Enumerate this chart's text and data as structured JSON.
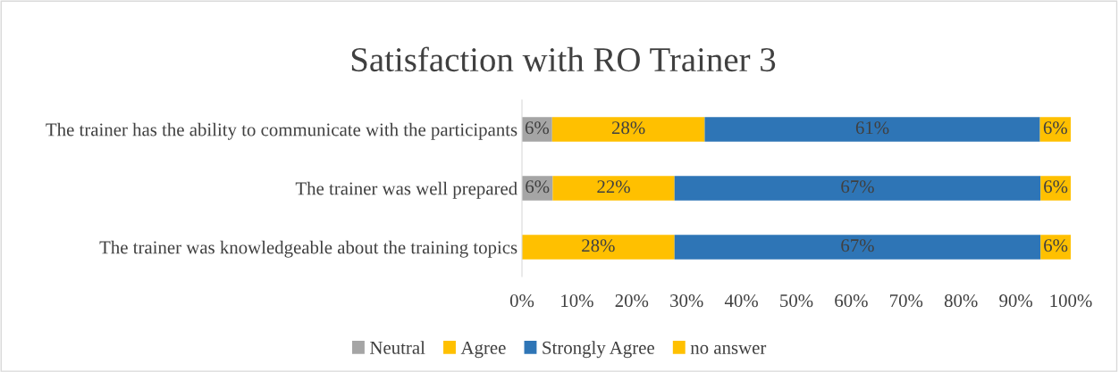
{
  "chart_data": {
    "type": "bar",
    "orientation": "horizontal",
    "stacked": true,
    "title": "Satisfaction with RO Trainer 3",
    "categories": [
      "The trainer has the ability to communicate with the participants",
      "The trainer was well prepared",
      "The trainer was knowledgeable about the training topics"
    ],
    "series": [
      {
        "name": "Neutral",
        "color": "#a5a5a5",
        "values": [
          5.5,
          5.6,
          null
        ],
        "value_labels": [
          "6%",
          "6%",
          null
        ]
      },
      {
        "name": "Agree",
        "color": "#ffc000",
        "values": [
          27.8,
          22.2,
          27.8
        ],
        "value_labels": [
          "28%",
          "22%",
          "28%"
        ]
      },
      {
        "name": "Strongly Agree",
        "color": "#2e75b6",
        "values": [
          61.1,
          66.7,
          66.7
        ],
        "value_labels": [
          "61%",
          "67%",
          "67%"
        ]
      },
      {
        "name": "no answer",
        "color": "#ffc000",
        "values": [
          5.6,
          5.5,
          5.5
        ],
        "value_labels": [
          "6%",
          "6%",
          "6%"
        ]
      }
    ],
    "xlim": [
      0,
      100
    ],
    "xticks": [
      {
        "value": 0,
        "label": "0%"
      },
      {
        "value": 10,
        "label": "10%"
      },
      {
        "value": 20,
        "label": "20%"
      },
      {
        "value": 30,
        "label": "30%"
      },
      {
        "value": 40,
        "label": "40%"
      },
      {
        "value": 50,
        "label": "50%"
      },
      {
        "value": 60,
        "label": "60%"
      },
      {
        "value": 70,
        "label": "70%"
      },
      {
        "value": 80,
        "label": "80%"
      },
      {
        "value": 90,
        "label": "90%"
      },
      {
        "value": 100,
        "label": "100%"
      }
    ],
    "grid": false,
    "legend": "bottom"
  }
}
